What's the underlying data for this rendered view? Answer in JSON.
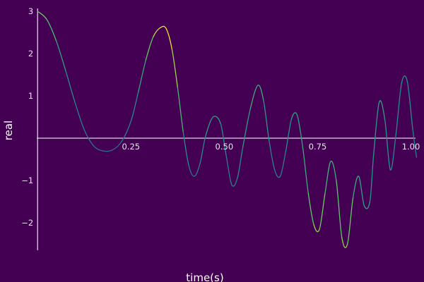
{
  "chart_data": {
    "type": "line",
    "title": "",
    "xlabel": "time(s)",
    "ylabel": "real",
    "xlim": [
      -0.025,
      1.035
    ],
    "ylim": [
      -2.65,
      3.1
    ],
    "grid": false,
    "legend": "none",
    "x_ticks": [
      0.25,
      0.5,
      0.75,
      1.0
    ],
    "x_tick_labels": [
      "0.25",
      "0.50",
      "0.75",
      "1.00"
    ],
    "y_ticks": [
      -2,
      -1,
      1,
      2,
      3
    ],
    "y_tick_labels": [
      "−2",
      "−1",
      "1",
      "2",
      "3"
    ],
    "colormap": [
      "#3b528b",
      "#21918c",
      "#5ec962",
      "#fde725"
    ],
    "colors": {
      "background": "#440154",
      "axis": "#d9d2e0",
      "text": "#e8e2ee"
    },
    "series": [
      {
        "x": [
          0.0,
          0.025,
          0.05,
          0.075,
          0.1,
          0.125,
          0.15,
          0.175,
          0.2,
          0.225,
          0.25,
          0.27,
          0.29,
          0.31,
          0.33,
          0.345,
          0.36,
          0.375,
          0.39,
          0.405,
          0.42,
          0.435,
          0.45,
          0.47,
          0.49,
          0.505,
          0.52,
          0.535,
          0.55,
          0.57,
          0.59,
          0.605,
          0.62,
          0.635,
          0.65,
          0.665,
          0.68,
          0.695,
          0.71,
          0.725,
          0.74,
          0.755,
          0.77,
          0.785,
          0.8,
          0.815,
          0.83,
          0.845,
          0.86,
          0.875,
          0.89,
          0.9,
          0.915,
          0.93,
          0.945,
          0.96,
          0.975,
          0.99,
          1.005,
          1.015
        ],
        "y": [
          3.0,
          2.8,
          2.3,
          1.6,
          0.85,
          0.2,
          -0.18,
          -0.3,
          -0.28,
          -0.08,
          0.4,
          1.1,
          1.85,
          2.4,
          2.62,
          2.58,
          2.1,
          1.2,
          0.15,
          -0.65,
          -0.9,
          -0.6,
          0.05,
          0.5,
          0.35,
          -0.4,
          -1.1,
          -0.95,
          -0.2,
          0.7,
          1.25,
          0.9,
          -0.05,
          -0.75,
          -0.9,
          -0.3,
          0.45,
          0.55,
          -0.2,
          -1.3,
          -2.05,
          -2.15,
          -1.3,
          -0.55,
          -1.0,
          -2.35,
          -2.5,
          -1.4,
          -0.9,
          -1.6,
          -1.5,
          -0.4,
          0.85,
          0.45,
          -0.75,
          0.1,
          1.3,
          1.35,
          0.2,
          -0.45
        ],
        "color_value": [
          0.75,
          0.65,
          0.5,
          0.35,
          0.25,
          0.2,
          0.15,
          0.12,
          0.15,
          0.18,
          0.22,
          0.35,
          0.55,
          0.8,
          0.95,
          1.0,
          0.9,
          0.7,
          0.4,
          0.25,
          0.2,
          0.25,
          0.35,
          0.45,
          0.35,
          0.25,
          0.2,
          0.25,
          0.35,
          0.45,
          0.55,
          0.45,
          0.3,
          0.2,
          0.2,
          0.25,
          0.4,
          0.45,
          0.4,
          0.55,
          0.75,
          0.8,
          0.6,
          0.45,
          0.55,
          0.75,
          0.8,
          0.55,
          0.4,
          0.45,
          0.4,
          0.3,
          0.45,
          0.4,
          0.3,
          0.25,
          0.35,
          0.35,
          0.25,
          0.2
        ]
      }
    ]
  }
}
